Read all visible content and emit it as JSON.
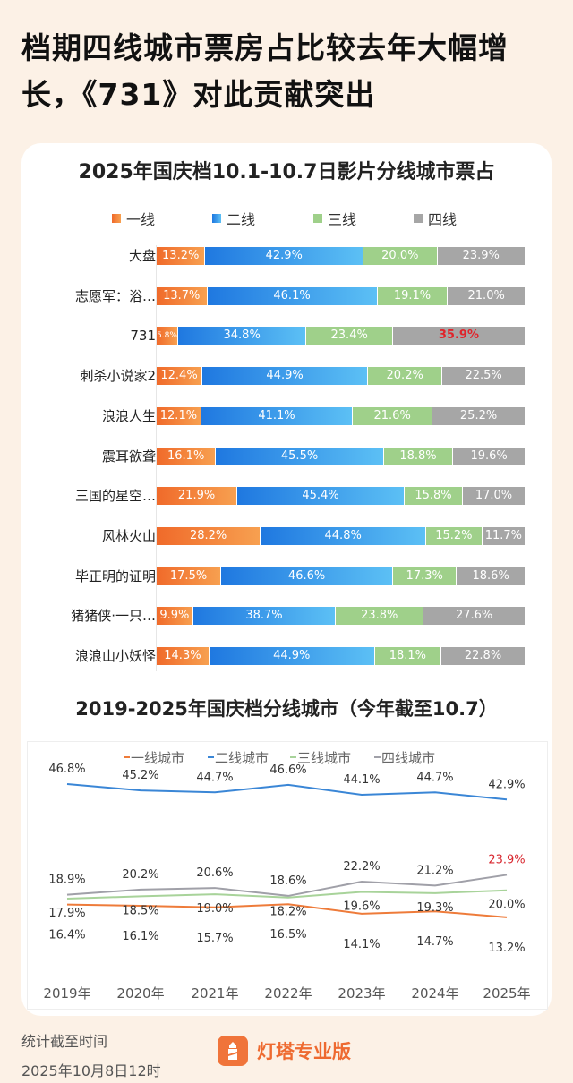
{
  "headline": "档期四线城市票房占比较去年大幅增长，《731》对此贡献突出",
  "chart_data": [
    {
      "type": "bar",
      "stacked": true,
      "orientation": "horizontal",
      "title": "2025年国庆档10.1-10.7日影片分线城市票占",
      "legend_position": "top",
      "categories": [
        "大盘",
        "志愿军：浴…",
        "731",
        "刺杀小说家2",
        "浪浪人生",
        "震耳欲聋",
        "三国的星空…",
        "风林火山",
        "毕正明的证明",
        "猪猪侠·一只…",
        "浪浪山小妖怪"
      ],
      "series": [
        {
          "name": "一线",
          "color": "#f07a35",
          "values": [
            13.2,
            13.7,
            5.8,
            12.4,
            12.1,
            16.1,
            21.9,
            28.2,
            17.5,
            9.9,
            14.3
          ]
        },
        {
          "name": "二线",
          "color": "#2f8be6",
          "values": [
            42.9,
            46.1,
            34.8,
            44.9,
            41.1,
            45.5,
            45.4,
            44.8,
            46.6,
            38.7,
            44.9
          ]
        },
        {
          "name": "三线",
          "color": "#9fd08a",
          "values": [
            20.0,
            19.1,
            23.4,
            20.2,
            21.6,
            18.8,
            15.8,
            15.2,
            17.3,
            23.8,
            18.1
          ]
        },
        {
          "name": "四线",
          "color": "#a6a6a6",
          "values": [
            23.9,
            21.0,
            35.9,
            22.5,
            25.2,
            19.6,
            17.0,
            11.7,
            18.6,
            27.6,
            22.8
          ]
        }
      ],
      "labels": [
        [
          "13.2%",
          "42.9%",
          "20.0%",
          "23.9%"
        ],
        [
          "13.7%",
          "46.1%",
          "19.1%",
          "21.0%"
        ],
        [
          "5.8%",
          "34.8%",
          "23.4%",
          "35.9%"
        ],
        [
          "12.4%",
          "44.9%",
          "20.2%",
          "22.5%"
        ],
        [
          "12.1%",
          "41.1%",
          "21.6%",
          "25.2%"
        ],
        [
          "16.1%",
          "45.5%",
          "18.8%",
          "19.6%"
        ],
        [
          "21.9%",
          "45.4%",
          "15.8%",
          "17.0%"
        ],
        [
          "28.2%",
          "44.8%",
          "15.2%",
          "11.7%"
        ],
        [
          "17.5%",
          "46.6%",
          "17.3%",
          "18.6%"
        ],
        [
          "9.9%",
          "38.7%",
          "23.8%",
          "27.6%"
        ],
        [
          "14.3%",
          "44.9%",
          "18.1%",
          "22.8%"
        ]
      ],
      "highlight": {
        "category": "731",
        "series": "四线",
        "color": "#e0242b"
      },
      "xlim": [
        0,
        100
      ]
    },
    {
      "type": "line",
      "title": "2019-2025年国庆档分线城市（今年截至10.7）",
      "legend_position": "top",
      "categories": [
        "2019年",
        "2020年",
        "2021年",
        "2022年",
        "2023年",
        "2024年",
        "2025年"
      ],
      "series": [
        {
          "name": "一线城市",
          "color": "#ee7b3a",
          "values": [
            16.4,
            16.1,
            15.7,
            16.5,
            14.1,
            14.7,
            13.2
          ]
        },
        {
          "name": "二线城市",
          "color": "#3a86d6",
          "values": [
            46.8,
            45.2,
            44.7,
            46.6,
            44.1,
            44.7,
            42.9
          ]
        },
        {
          "name": "三线城市",
          "color": "#a8d39a",
          "values": [
            17.9,
            18.5,
            19.0,
            18.2,
            19.6,
            19.3,
            20.0
          ]
        },
        {
          "name": "四线城市",
          "color": "#a0a0a8",
          "values": [
            18.9,
            20.2,
            20.6,
            18.6,
            22.2,
            21.2,
            23.9
          ]
        }
      ],
      "highlight": {
        "series": "四线城市",
        "category": "2025年",
        "color": "#d8262e"
      },
      "grid": false
    }
  ],
  "footer": {
    "note_label": "统计截至时间",
    "note_time": "2025年10月8日12时",
    "brand": "灯塔专业版"
  }
}
